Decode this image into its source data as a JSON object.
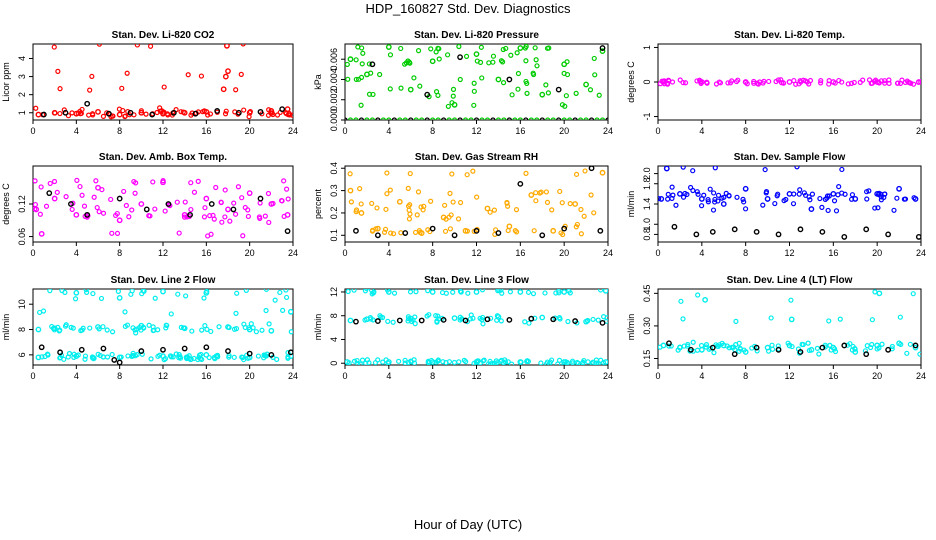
{
  "page": {
    "title": "HDP_160827  Std. Dev. Diagnostics",
    "x_axis_title": "Hour of Day (UTC)"
  },
  "chart_data": [
    {
      "type": "scatter",
      "title": "Stan. Dev. Li-820 CO2",
      "ylabel": "Licor ppm",
      "xlabel": "",
      "xlim": [
        0,
        24
      ],
      "ylim": [
        0.6,
        4.8
      ],
      "xticks": [
        0,
        4,
        8,
        12,
        16,
        20,
        24
      ],
      "yticks": [
        1,
        2,
        3,
        4
      ],
      "series": [
        {
          "name": "primary",
          "color": "#ff0000",
          "x": [
            0.5,
            2.0,
            4.0,
            6.0,
            8.0,
            10.0,
            12.0,
            14.0,
            16.0,
            17.6,
            17.8,
            17.9,
            18.0,
            20.0,
            22.0,
            23.5
          ],
          "y": [
            0.9,
            1.0,
            0.95,
            1.05,
            0.9,
            1.0,
            0.95,
            1.0,
            1.05,
            2.3,
            3.0,
            4.7,
            3.3,
            1.0,
            1.1,
            1.2
          ]
        },
        {
          "name": "secondary",
          "color": "#000000",
          "x": [
            1.0,
            3.0,
            5.0,
            7.0,
            9.0,
            11.0,
            13.0,
            15.0,
            17.0,
            19.0,
            21.0,
            23.0
          ],
          "y": [
            0.9,
            1.0,
            1.5,
            0.95,
            1.0,
            0.9,
            1.0,
            0.95,
            1.1,
            1.0,
            1.05,
            1.2
          ]
        }
      ]
    },
    {
      "type": "scatter",
      "title": "Stan. Dev. Li-820 Pressure",
      "ylabel": "kPa",
      "xlabel": "",
      "xlim": [
        0,
        24
      ],
      "ylim": [
        0,
        0.0075
      ],
      "xticks": [
        0,
        4,
        8,
        12,
        16,
        20,
        24
      ],
      "yticks": [
        0.0,
        0.002,
        0.004,
        0.006
      ],
      "series": [
        {
          "name": "primary",
          "color": "#00cc00",
          "x": [
            0.5,
            2.0,
            4.0,
            6.0,
            8.0,
            10.0,
            12.0,
            14.0,
            16.0,
            18.0,
            20.0,
            22.0,
            23.5
          ],
          "y": [
            0.006,
            0.0045,
            0.0072,
            0.003,
            0.0058,
            0.0015,
            0.0065,
            0.004,
            0.0071,
            0.0025,
            0.0055,
            0.0035,
            0.0068
          ]
        },
        {
          "name": "secondary",
          "color": "#000000",
          "x": [
            2.5,
            7.5,
            10.5,
            15.0,
            19.5,
            23.5
          ],
          "y": [
            0.0055,
            0.0025,
            0.0062,
            0.004,
            0.003,
            0.0071
          ]
        }
      ],
      "baseline": {
        "y": 0.0,
        "color_primary": "#00cc00",
        "color_secondary": "#000000"
      }
    },
    {
      "type": "scatter",
      "title": "Stan. Dev. Li-820 Temp.",
      "ylabel": "degrees C",
      "xlabel": "",
      "xlim": [
        0,
        24
      ],
      "ylim": [
        -1.1,
        1.1
      ],
      "xticks": [
        0,
        4,
        8,
        12,
        16,
        20,
        24
      ],
      "yticks": [
        -1.0,
        0.0,
        1.0
      ],
      "series": [
        {
          "name": "primary",
          "color": "#ff00ff",
          "x": [
            0.5,
            4.0,
            8.0,
            12.0,
            16.0,
            20.0,
            23.8
          ],
          "y": [
            0,
            0,
            0,
            0,
            0,
            0,
            0
          ]
        }
      ]
    },
    {
      "type": "scatter",
      "title": "Stan. Dev. Amb. Box Temp.",
      "ylabel": "degrees C",
      "xlabel": "",
      "xlim": [
        0,
        24
      ],
      "ylim": [
        0.05,
        0.19
      ],
      "xticks": [
        0,
        4,
        8,
        12,
        16,
        20,
        24
      ],
      "yticks": [
        0.06,
        0.12
      ],
      "series": [
        {
          "name": "primary",
          "color": "#ff00ff",
          "x": [
            0.3,
            0.8,
            2.0,
            4.0,
            6.0,
            8.0,
            10.0,
            12.0,
            14.0,
            16.0,
            18.0,
            20.0,
            22.0,
            23.5
          ],
          "y": [
            0.11,
            0.065,
            0.13,
            0.1,
            0.15,
            0.09,
            0.12,
            0.16,
            0.1,
            0.13,
            0.11,
            0.14,
            0.12,
            0.1
          ]
        },
        {
          "name": "secondary",
          "color": "#000000",
          "x": [
            1.5,
            3.5,
            5.0,
            8.0,
            10.5,
            12.5,
            14.5,
            16.5,
            18.5,
            21.0,
            23.5
          ],
          "y": [
            0.14,
            0.12,
            0.1,
            0.13,
            0.11,
            0.12,
            0.1,
            0.12,
            0.11,
            0.13,
            0.07
          ]
        }
      ]
    },
    {
      "type": "scatter",
      "title": "Stan. Dev. Gas Stream RH",
      "ylabel": "percent",
      "xlabel": "",
      "xlim": [
        0,
        24
      ],
      "ylim": [
        0.07,
        0.41
      ],
      "xticks": [
        0,
        4,
        8,
        12,
        16,
        20,
        24
      ],
      "yticks": [
        0.1,
        0.2,
        0.3,
        0.4
      ],
      "series": [
        {
          "name": "primary",
          "color": "#ffaa00",
          "x": [
            0.5,
            1.5,
            3.0,
            5.0,
            7.0,
            9.0,
            11.0,
            13.0,
            15.0,
            17.0,
            19.0,
            21.0,
            23.5
          ],
          "y": [
            0.3,
            0.2,
            0.13,
            0.25,
            0.11,
            0.18,
            0.12,
            0.22,
            0.14,
            0.28,
            0.12,
            0.24,
            0.38
          ]
        },
        {
          "name": "secondary",
          "color": "#000000",
          "x": [
            1.0,
            3.0,
            5.5,
            8.0,
            10.0,
            12.0,
            14.0,
            16.0,
            18.0,
            20.0,
            22.5,
            23.3
          ],
          "y": [
            0.12,
            0.1,
            0.11,
            0.13,
            0.1,
            0.12,
            0.11,
            0.33,
            0.1,
            0.13,
            0.4,
            0.12
          ]
        }
      ]
    },
    {
      "type": "scatter",
      "title": "Stan. Dev. Sample Flow",
      "ylabel": "ml/min",
      "xlabel": "",
      "xlim": [
        0,
        24
      ],
      "ylim": [
        0.65,
        2.15
      ],
      "xticks": [
        0,
        4,
        8,
        12,
        16,
        20,
        24
      ],
      "yticks": [
        0.8,
        1.0,
        1.4,
        1.8,
        2.0
      ],
      "series": [
        {
          "name": "primary",
          "color": "#0000ff",
          "x": [
            0.3,
            0.8,
            2.0,
            4.0,
            6.0,
            8.0,
            10.0,
            12.0,
            14.0,
            16.0,
            18.0,
            20.0,
            22.0,
            23.5
          ],
          "y": [
            1.5,
            2.1,
            1.6,
            1.5,
            1.4,
            1.7,
            1.5,
            1.6,
            1.3,
            1.6,
            1.5,
            1.6,
            1.7,
            1.5
          ]
        },
        {
          "name": "secondary",
          "color": "#000000",
          "x": [
            1.5,
            3.5,
            5.0,
            7.0,
            9.0,
            11.0,
            13.0,
            15.0,
            17.0,
            19.0,
            21.0,
            23.8
          ],
          "y": [
            0.95,
            0.8,
            0.85,
            0.9,
            0.85,
            0.8,
            0.9,
            0.85,
            0.75,
            0.9,
            0.8,
            0.75
          ]
        }
      ]
    },
    {
      "type": "scatter",
      "title": "Stan. Dev. Line 2 Flow",
      "ylabel": "ml/min",
      "xlabel": "",
      "xlim": [
        0,
        24
      ],
      "ylim": [
        5.2,
        11.2
      ],
      "xticks": [
        0,
        4,
        8,
        12,
        16,
        20,
        24
      ],
      "yticks": [
        6,
        8,
        10
      ],
      "series": [
        {
          "name": "upper",
          "color": "#00eeee",
          "x": [
            0.5,
            2.0,
            4.0,
            6.0,
            8.0,
            10.0,
            12.0,
            14.0,
            16.0,
            18.0,
            20.0,
            22.0,
            23.8
          ],
          "y": [
            8.0,
            8.1,
            10.9,
            8.2,
            10.5,
            8.3,
            11.0,
            8.1,
            10.9,
            8.2,
            8.0,
            7.9,
            9.4
          ]
        },
        {
          "name": "lower",
          "color": "#00eeee",
          "x": [
            0.5,
            4.0,
            8.0,
            12.0,
            16.0,
            20.0,
            23.8
          ],
          "y": [
            5.8,
            5.9,
            5.8,
            5.9,
            6.0,
            5.8,
            5.9
          ]
        },
        {
          "name": "secondary",
          "color": "#000000",
          "x": [
            0.8,
            2.5,
            4.5,
            6.5,
            7.5,
            8.0,
            10.0,
            12.0,
            14.0,
            16.0,
            18.0,
            20.0,
            22.0,
            23.8
          ],
          "y": [
            6.6,
            6.2,
            6.4,
            6.5,
            5.6,
            5.4,
            6.3,
            6.4,
            6.5,
            6.6,
            6.3,
            6.1,
            6.0,
            6.2
          ]
        }
      ]
    },
    {
      "type": "scatter",
      "title": "Stan. Dev. Line 3 Flow",
      "ylabel": "ml/min",
      "xlabel": "",
      "xlim": [
        0,
        24
      ],
      "ylim": [
        -0.3,
        12.5
      ],
      "xticks": [
        0,
        4,
        8,
        12,
        16,
        20,
        24
      ],
      "yticks": [
        0,
        4,
        8,
        12
      ],
      "series": [
        {
          "name": "upper",
          "color": "#00eeee",
          "x": [
            0.5,
            2.0,
            4.0,
            6.0,
            8.0,
            10.0,
            12.0,
            14.0,
            16.0,
            18.0,
            20.0,
            22.0,
            23.8
          ],
          "y": [
            7.2,
            7.4,
            12.0,
            7.5,
            12.0,
            7.6,
            12.0,
            7.8,
            12.0,
            7.7,
            12.0,
            7.0,
            12.2
          ]
        },
        {
          "name": "baseline",
          "color": "#00eeee",
          "x": [
            0.2,
            4.0,
            8.0,
            12.0,
            16.0,
            20.0,
            23.8
          ],
          "y": [
            0.2,
            0.2,
            0.2,
            0.2,
            0.2,
            0.2,
            0.2
          ]
        },
        {
          "name": "secondary",
          "color": "#000000",
          "x": [
            1.0,
            3.0,
            5.0,
            7.0,
            9.0,
            11.0,
            13.0,
            15.0,
            17.0,
            19.0,
            21.0,
            23.5
          ],
          "y": [
            7.0,
            7.1,
            7.2,
            7.2,
            7.3,
            7.2,
            7.4,
            7.3,
            7.5,
            7.4,
            7.1,
            6.8
          ]
        }
      ]
    },
    {
      "type": "scatter",
      "title": "Stan. Dev. Line 4 (LT) Flow",
      "ylabel": "ml/min",
      "xlabel": "",
      "xlim": [
        0,
        24
      ],
      "ylim": [
        0.12,
        0.47
      ],
      "xticks": [
        0,
        4,
        8,
        12,
        16,
        20,
        24
      ],
      "yticks": [
        0.15,
        0.3,
        0.45
      ],
      "series": [
        {
          "name": "primary",
          "color": "#00eeee",
          "x": [
            0.5,
            2.0,
            4.0,
            4.3,
            6.0,
            8.0,
            10.0,
            12.0,
            12.2,
            14.0,
            16.0,
            18.0,
            20.0,
            20.2,
            22.0,
            23.5
          ],
          "y": [
            0.21,
            0.2,
            0.19,
            0.42,
            0.21,
            0.18,
            0.2,
            0.21,
            0.33,
            0.19,
            0.2,
            0.18,
            0.21,
            0.45,
            0.22,
            0.2
          ]
        },
        {
          "name": "secondary",
          "color": "#000000",
          "x": [
            1.0,
            3.0,
            5.0,
            7.0,
            9.0,
            11.0,
            13.0,
            15.0,
            17.0,
            19.0,
            21.0,
            23.5
          ],
          "y": [
            0.22,
            0.19,
            0.2,
            0.17,
            0.2,
            0.19,
            0.18,
            0.2,
            0.21,
            0.17,
            0.19,
            0.21
          ]
        }
      ]
    }
  ]
}
